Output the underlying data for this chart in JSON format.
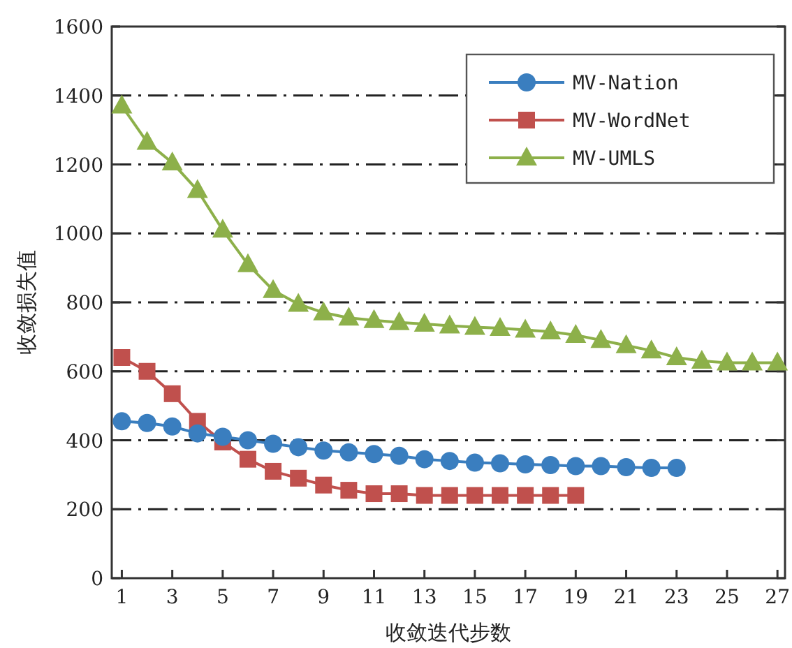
{
  "chart_data": {
    "type": "line",
    "xlabel": "收敛迭代步数",
    "ylabel": "收敛损失值",
    "xlim": [
      0.6,
      27.3
    ],
    "ylim": [
      0,
      1600
    ],
    "xticks": [
      1,
      3,
      5,
      7,
      9,
      11,
      13,
      15,
      17,
      19,
      21,
      23,
      25,
      27
    ],
    "yticks": [
      0,
      200,
      400,
      600,
      800,
      1000,
      1200,
      1400,
      1600
    ],
    "grid": "y",
    "legend": "top right",
    "series": [
      {
        "name": "MV-Nation",
        "color": "#3a7ebf",
        "marker": "circle",
        "x": [
          1,
          2,
          3,
          4,
          5,
          6,
          7,
          8,
          9,
          10,
          11,
          12,
          13,
          14,
          15,
          16,
          17,
          18,
          19,
          20,
          21,
          22,
          23
        ],
        "values": [
          455,
          450,
          440,
          420,
          410,
          400,
          390,
          380,
          370,
          365,
          360,
          355,
          345,
          340,
          335,
          333,
          330,
          328,
          325,
          325,
          322,
          320,
          320
        ]
      },
      {
        "name": "MV-WordNet",
        "color": "#c0504d",
        "marker": "square",
        "x": [
          1,
          2,
          3,
          4,
          5,
          6,
          7,
          8,
          9,
          10,
          11,
          12,
          13,
          14,
          15,
          16,
          17,
          18,
          19
        ],
        "values": [
          640,
          600,
          535,
          455,
          395,
          345,
          310,
          290,
          270,
          255,
          245,
          245,
          240,
          240,
          240,
          240,
          240,
          240,
          240
        ]
      },
      {
        "name": "MV-UMLS",
        "color": "#8db04a",
        "marker": "triangle",
        "x": [
          1,
          2,
          3,
          4,
          5,
          6,
          7,
          8,
          9,
          10,
          11,
          12,
          13,
          14,
          15,
          16,
          17,
          18,
          19,
          20,
          21,
          22,
          23,
          24,
          25,
          26,
          27
        ],
        "values": [
          1370,
          1265,
          1205,
          1125,
          1010,
          910,
          835,
          795,
          770,
          755,
          748,
          742,
          737,
          732,
          728,
          725,
          720,
          715,
          705,
          690,
          675,
          660,
          640,
          630,
          625,
          625,
          625
        ]
      }
    ]
  }
}
